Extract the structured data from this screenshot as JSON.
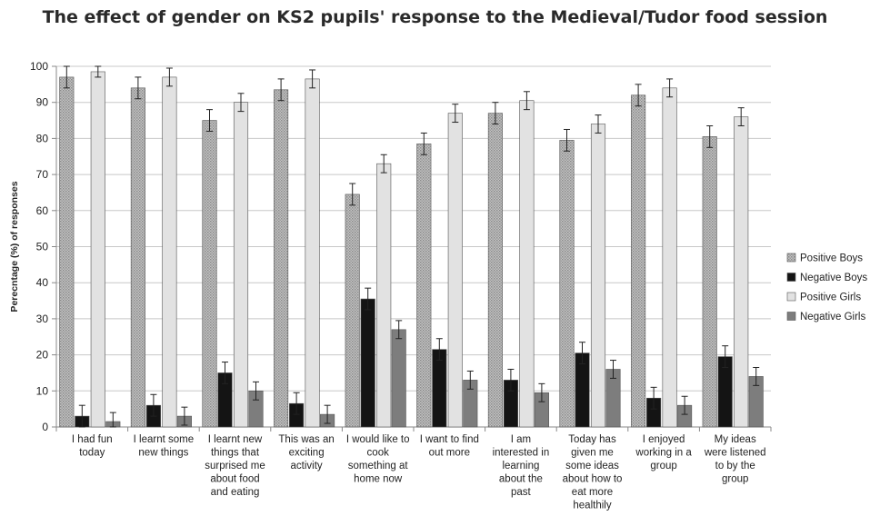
{
  "chart_data": {
    "type": "bar",
    "title": "The effect of gender on KS2 pupils' response to the Medieval/Tudor food session",
    "ylabel": "Perecntage (%) of responses",
    "xlabel": "",
    "ylim": [
      0,
      100
    ],
    "yticks": [
      0,
      10,
      20,
      30,
      40,
      50,
      60,
      70,
      80,
      90,
      100
    ],
    "grid": true,
    "legend_position": "right",
    "categories": [
      [
        "I had fun",
        "today"
      ],
      [
        "I learnt some",
        "new things"
      ],
      [
        "I learnt new",
        "things that",
        "surprised me",
        "about food",
        "and eating"
      ],
      [
        "This was an",
        "exciting",
        "activity"
      ],
      [
        "I would like to",
        "cook",
        "something at",
        "home now"
      ],
      [
        "I want to find",
        "out more"
      ],
      [
        "I am",
        "interested in",
        "learning",
        "about the",
        "past"
      ],
      [
        "Today has",
        "given me",
        "some ideas",
        "about how to",
        "eat more",
        "healthily"
      ],
      [
        "I enjoyed",
        "working in a",
        "group"
      ],
      [
        "My ideas",
        "were listened",
        "to by the",
        "group"
      ]
    ],
    "series": [
      {
        "name": "Positive Boys",
        "color": "#a8a8a8",
        "pattern": "stipple",
        "values": [
          97,
          94,
          85,
          93.5,
          64.5,
          78.5,
          87,
          79.5,
          92,
          80.5
        ],
        "errors": [
          3,
          3,
          3,
          3,
          3,
          3,
          3,
          3,
          3,
          3
        ]
      },
      {
        "name": "Negative Boys",
        "color": "#141414",
        "pattern": "solid",
        "values": [
          3,
          6,
          15,
          6.5,
          35.5,
          21.5,
          13,
          20.5,
          8,
          19.5
        ],
        "errors": [
          3,
          3,
          3,
          3,
          3,
          3,
          3,
          3,
          3,
          3
        ]
      },
      {
        "name": "Positive Girls",
        "color": "#e2e2e2",
        "pattern": "solid",
        "values": [
          98.5,
          97,
          90,
          96.5,
          73,
          87,
          90.5,
          84,
          94,
          86
        ],
        "errors": [
          1.5,
          2.5,
          2.5,
          2.5,
          2.5,
          2.5,
          2.5,
          2.5,
          2.5,
          2.5
        ]
      },
      {
        "name": "Negative Girls",
        "color": "#7d7d7d",
        "pattern": "solid",
        "values": [
          1.5,
          3,
          10,
          3.5,
          27,
          13,
          9.5,
          16,
          6,
          14
        ],
        "errors": [
          2.5,
          2.5,
          2.5,
          2.5,
          2.5,
          2.5,
          2.5,
          2.5,
          2.5,
          2.5
        ]
      }
    ]
  }
}
